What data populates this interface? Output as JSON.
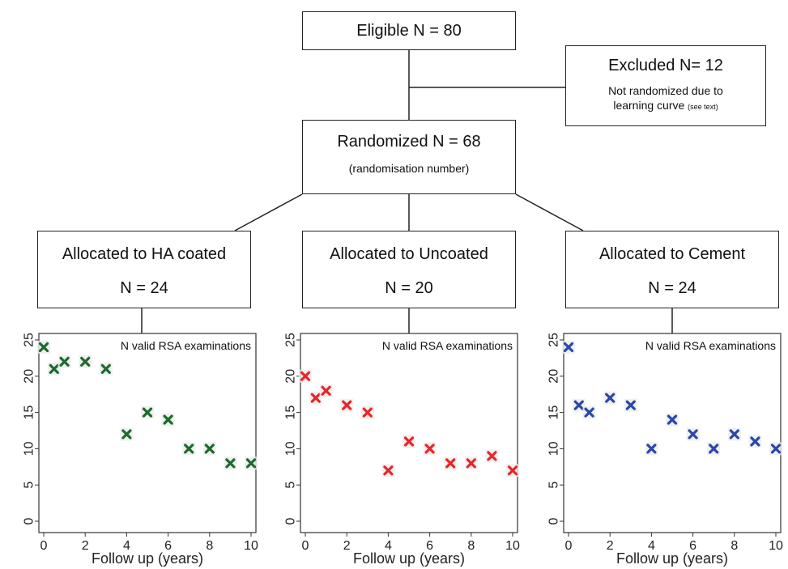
{
  "flow": {
    "eligible": "Eligible N = 80",
    "excluded": {
      "title": "Excluded N= 12",
      "line1": "Not randomized due to",
      "line2": "learning curve",
      "note": "(see text)"
    },
    "randomized": {
      "title": "Randomized N = 68",
      "sub": "(randomisation number)"
    },
    "arms": [
      {
        "label": "Allocated to HA coated",
        "n": "N = 24"
      },
      {
        "label": "Allocated to Uncoated",
        "n": "N = 20"
      },
      {
        "label": "Allocated to Cement",
        "n": "N = 24"
      }
    ]
  },
  "chart_data": [
    {
      "type": "scatter",
      "annotation": "N valid RSA examinations",
      "xlabel": "Follow up (years)",
      "ylabel": "",
      "xlim": [
        0,
        10
      ],
      "ylim": [
        0,
        25
      ],
      "xticks": [
        0,
        2,
        4,
        6,
        8,
        10
      ],
      "yticks": [
        0,
        5,
        10,
        15,
        20,
        25
      ],
      "x": [
        0,
        0.5,
        1,
        2,
        3,
        4,
        5,
        6,
        7,
        8,
        9,
        10
      ],
      "y": [
        24,
        21,
        22,
        22,
        21,
        12,
        15,
        14,
        10,
        10,
        8,
        8
      ],
      "color": "#1d6b2c"
    },
    {
      "type": "scatter",
      "annotation": "N valid RSA examinations",
      "xlabel": "Follow up (years)",
      "ylabel": "",
      "xlim": [
        0,
        10
      ],
      "ylim": [
        0,
        25
      ],
      "xticks": [
        0,
        2,
        4,
        6,
        8,
        10
      ],
      "yticks": [
        0,
        5,
        10,
        15,
        20,
        25
      ],
      "x": [
        0,
        0.5,
        1,
        2,
        3,
        4,
        5,
        6,
        7,
        8,
        9,
        10
      ],
      "y": [
        20,
        17,
        18,
        16,
        15,
        7,
        11,
        10,
        8,
        8,
        9,
        7
      ],
      "color": "#e8262b"
    },
    {
      "type": "scatter",
      "annotation": "N valid RSA examinations",
      "xlabel": "Follow up (years)",
      "ylabel": "",
      "xlim": [
        0,
        10
      ],
      "ylim": [
        0,
        25
      ],
      "xticks": [
        0,
        2,
        4,
        6,
        8,
        10
      ],
      "yticks": [
        0,
        5,
        10,
        15,
        20,
        25
      ],
      "x": [
        0,
        0.5,
        1,
        2,
        3,
        4,
        5,
        6,
        7,
        8,
        9,
        10
      ],
      "y": [
        24,
        16,
        15,
        17,
        16,
        10,
        14,
        12,
        10,
        12,
        11,
        10
      ],
      "color": "#2a48a8"
    }
  ]
}
